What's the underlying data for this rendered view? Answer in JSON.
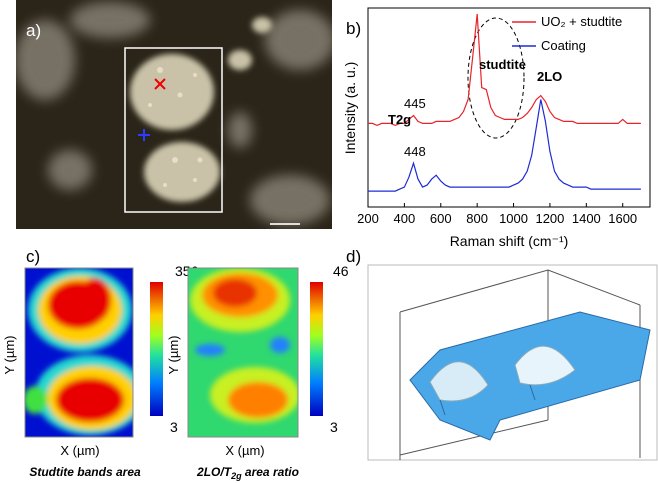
{
  "panels": {
    "a": "a)",
    "b": "b)",
    "c": "c)",
    "d": "d)"
  },
  "chart_data": {
    "type": "line",
    "x_label": "Raman shift (cm⁻¹)",
    "y_label": "Intensity (a. u.)",
    "xlim": [
      200,
      1750
    ],
    "xticks": [
      200,
      400,
      600,
      800,
      1000,
      1200,
      1400,
      1600
    ],
    "ylim": [
      0,
      10
    ],
    "annotations": [
      "T2g",
      "445",
      "448",
      "studtite",
      "2LO"
    ],
    "x": [
      200,
      225,
      250,
      275,
      300,
      325,
      350,
      375,
      400,
      425,
      450,
      475,
      500,
      525,
      550,
      575,
      600,
      625,
      650,
      675,
      700,
      725,
      750,
      775,
      800,
      825,
      850,
      875,
      900,
      925,
      950,
      975,
      1000,
      1025,
      1050,
      1075,
      1100,
      1125,
      1150,
      1175,
      1200,
      1225,
      1250,
      1275,
      1300,
      1325,
      1350,
      1375,
      1400,
      1425,
      1450,
      1475,
      1500,
      1525,
      1550,
      1575,
      1600,
      1625,
      1650,
      1675,
      1700
    ],
    "series": [
      {
        "name": "UO₂ + studtite",
        "color": "#e8232a",
        "values": [
          4.2,
          4.2,
          4.1,
          4.2,
          4.2,
          4.2,
          4.1,
          4.2,
          4.2,
          4.4,
          4.6,
          4.3,
          4.2,
          4.2,
          4.2,
          4.3,
          4.3,
          4.3,
          4.3,
          4.4,
          4.5,
          4.8,
          5.4,
          7.5,
          9.7,
          6.0,
          5.9,
          5.0,
          4.6,
          4.5,
          4.4,
          4.4,
          4.4,
          4.4,
          4.5,
          4.7,
          5.0,
          5.4,
          5.6,
          5.3,
          4.8,
          4.5,
          4.4,
          4.3,
          4.3,
          4.3,
          4.2,
          4.2,
          4.2,
          4.2,
          4.2,
          4.2,
          4.2,
          4.2,
          4.2,
          4.2,
          4.4,
          4.2,
          4.2,
          4.2,
          4.2
        ]
      },
      {
        "name": "Coating",
        "color": "#1f2bd6",
        "values": [
          0.8,
          0.8,
          0.8,
          0.8,
          0.8,
          0.8,
          0.8,
          0.9,
          1.0,
          1.5,
          2.2,
          1.4,
          1.0,
          1.1,
          1.4,
          1.6,
          1.3,
          1.1,
          1.0,
          1.0,
          1.0,
          1.0,
          1.0,
          1.0,
          1.0,
          1.0,
          1.0,
          1.0,
          1.0,
          1.0,
          1.0,
          1.0,
          1.1,
          1.2,
          1.4,
          1.8,
          2.6,
          4.0,
          5.4,
          4.3,
          2.8,
          1.8,
          1.4,
          1.2,
          1.1,
          1.0,
          1.0,
          1.0,
          1.0,
          0.9,
          0.9,
          0.9,
          0.9,
          0.9,
          0.9,
          0.9,
          0.9,
          0.9,
          0.9,
          0.9,
          0.9
        ]
      }
    ]
  },
  "maps": {
    "x_label": "X (µm)",
    "y_label": "Y (µm)",
    "left": {
      "max": 356,
      "min": 3,
      "caption": "Studtite bands area"
    },
    "right": {
      "max": 46,
      "min": 3,
      "caption": {
        "prefix": "2LO/T",
        "sub": "2g",
        "suffix": " area ratio"
      }
    }
  }
}
